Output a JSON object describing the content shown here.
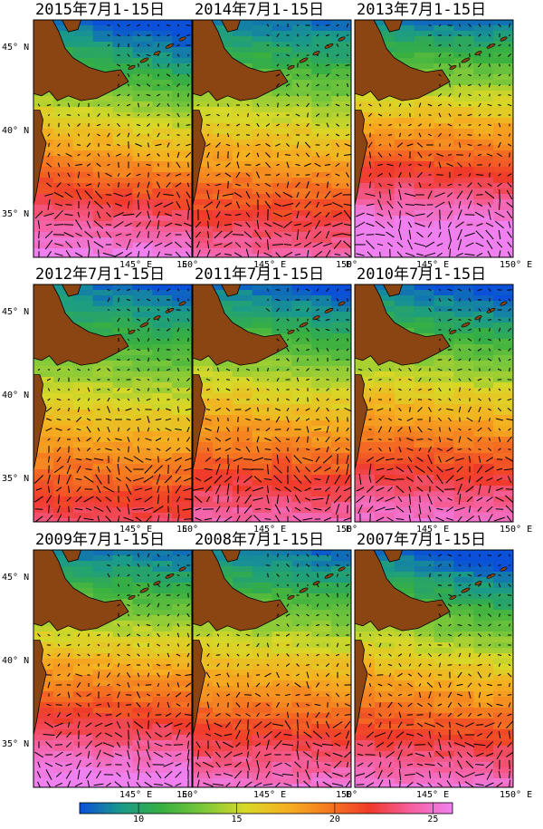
{
  "panels": [
    {
      "title": "2015年7月1-15日",
      "seed": 11,
      "warm": 1.05,
      "north_cold": 1.0
    },
    {
      "title": "2014年7月1-15日",
      "seed": 23,
      "warm": 0.95,
      "north_cold": 0.3
    },
    {
      "title": "2013年7月1-15日",
      "seed": 37,
      "warm": 1.2,
      "north_cold": 0.2
    },
    {
      "title": "2012年7月1-15日",
      "seed": 41,
      "warm": 0.85,
      "north_cold": 0.5
    },
    {
      "title": "2011年7月1-15日",
      "seed": 53,
      "warm": 0.95,
      "north_cold": 0.6
    },
    {
      "title": "2010年7月1-15日",
      "seed": 67,
      "warm": 1.0,
      "north_cold": 0.7
    },
    {
      "title": "2009年7月1-15日",
      "seed": 71,
      "warm": 1.1,
      "north_cold": 0.3
    },
    {
      "title": "2008年7月1-15日",
      "seed": 83,
      "warm": 1.0,
      "north_cold": 0.3
    },
    {
      "title": "2007年7月1-15日",
      "seed": 97,
      "warm": 1.0,
      "north_cold": 0.9
    }
  ],
  "lat_labels": [
    "45° N",
    "40° N",
    "35° N"
  ],
  "lon_labels_col1": [
    "145° E",
    "150°"
  ],
  "lon_labels_col2": [
    "E",
    "145° E",
    "150°"
  ],
  "lon_labels_col3": [
    "E",
    "145° E",
    "150° E"
  ],
  "colorbar": {
    "ticks": [
      "10",
      "15",
      "20",
      "25"
    ],
    "tick_values": [
      10,
      15,
      20,
      25
    ],
    "min": 7,
    "max": 26,
    "colors": [
      "#0a50d8",
      "#1a9a8a",
      "#38b040",
      "#7cc83a",
      "#d8d828",
      "#f5b020",
      "#f57a20",
      "#f03a2a",
      "#f560a0",
      "#f080f0"
    ]
  },
  "land_color": "#8b4513",
  "map_extent": {
    "lon_min": 140,
    "lon_max": 150,
    "lat_min": 33,
    "lat_max": 47
  }
}
